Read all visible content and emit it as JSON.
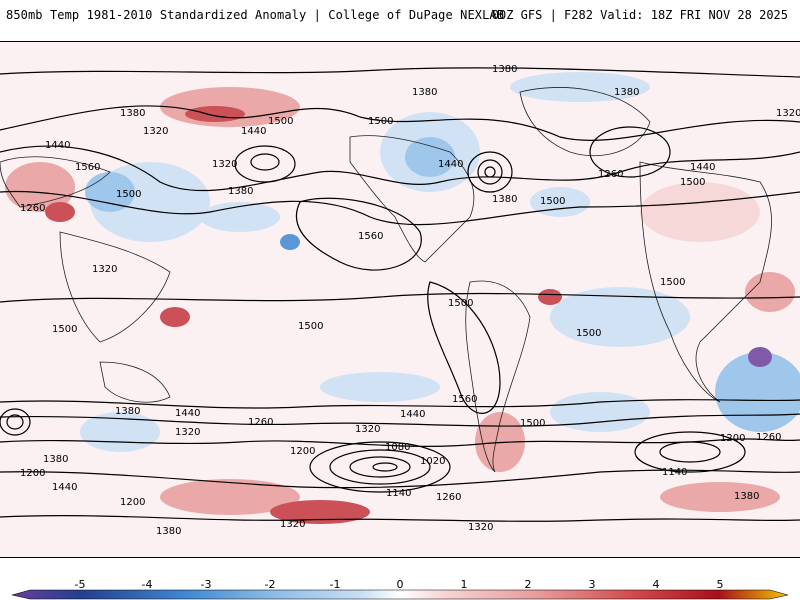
{
  "header": {
    "title": "850mb Temp 1981-2010 Standardized Anomaly | College of DuPage NEXLAB",
    "run_info": "00Z GFS | F282 Valid: 18Z FRI NOV 28 2025"
  },
  "colorbar": {
    "ticks": [
      "-5",
      "-4",
      "-3",
      "-2",
      "-1",
      "0",
      "1",
      "2",
      "3",
      "4",
      "5"
    ],
    "colors": [
      "#6a3d9a",
      "#24408e",
      "#3f86d0",
      "#8fbde8",
      "#c9def3",
      "#ffffff",
      "#f6d2d2",
      "#e79a9a",
      "#d24b4b",
      "#a8101c",
      "#f5c400"
    ]
  },
  "contour_labels": [
    {
      "text": "1380",
      "label": "north-pole-1380"
    },
    {
      "text": "1380",
      "label": "alaska-1380"
    },
    {
      "text": "1380",
      "label": "greenland-1380"
    },
    {
      "text": "1380",
      "label": "siberia-1380"
    },
    {
      "text": "1320",
      "label": "eurasia-1320"
    },
    {
      "text": "1440",
      "label": "pacific-1440"
    },
    {
      "text": "1500",
      "label": "pacific-1500"
    },
    {
      "text": "1320",
      "label": "pacific-1320"
    },
    {
      "text": "1380",
      "label": "pacific-low-1380"
    },
    {
      "text": "1440",
      "label": "nw-1440"
    },
    {
      "text": "1560",
      "label": "asia-1560"
    },
    {
      "text": "1500",
      "label": "asia-1500"
    },
    {
      "text": "1500",
      "label": "n-america-1500"
    },
    {
      "text": "1440",
      "label": "n-america-1440"
    },
    {
      "text": "1380",
      "label": "e-us-1380"
    },
    {
      "text": "1500",
      "label": "atlantic-1500"
    },
    {
      "text": "1560",
      "label": "atlantic-1560"
    },
    {
      "text": "1500",
      "label": "africa-1500"
    },
    {
      "text": "1500",
      "label": "indian-ocean-1500"
    },
    {
      "text": "1440",
      "label": "s-pacific-1440"
    },
    {
      "text": "1380",
      "label": "s-pacific-1380"
    },
    {
      "text": "1320",
      "label": "s-pacific-1320"
    },
    {
      "text": "1260",
      "label": "s-pacific-1260"
    },
    {
      "text": "1200",
      "label": "s-pacific-1200"
    },
    {
      "text": "1080",
      "label": "s-pacific-1080"
    },
    {
      "text": "1020",
      "label": "s-pacific-1020"
    },
    {
      "text": "1140",
      "label": "s-pacific-1140"
    },
    {
      "text": "1260",
      "label": "drake-1260"
    },
    {
      "text": "1320",
      "label": "antarctic-1320"
    },
    {
      "text": "1380",
      "label": "antarctic-1380"
    },
    {
      "text": "1440",
      "label": "s-atlantic-1440"
    },
    {
      "text": "1320",
      "label": "s-atlantic-1320"
    },
    {
      "text": "1200",
      "label": "s-indian-1200"
    },
    {
      "text": "1260",
      "label": "s-indian-1260"
    },
    {
      "text": "1140",
      "label": "s-indian-1140"
    },
    {
      "text": "1560",
      "label": "s-america-1560"
    },
    {
      "text": "1500",
      "label": "s-america-1500"
    },
    {
      "text": "1500",
      "label": "w-pacific-1500"
    },
    {
      "text": "1500",
      "label": "far-west-1500"
    },
    {
      "text": "1320",
      "label": "far-east-1320"
    },
    {
      "text": "1260",
      "label": "far-east-1260"
    },
    {
      "text": "1440",
      "label": "far-east-1440"
    },
    {
      "text": "1500",
      "label": "eurasia-1500"
    },
    {
      "text": "1500",
      "label": "se-asia-1500"
    },
    {
      "text": "1320",
      "label": "sw-1320"
    },
    {
      "text": "1260",
      "label": "sw-1260"
    },
    {
      "text": "1200",
      "label": "sw-1200"
    },
    {
      "text": "1380",
      "label": "sw-1380"
    },
    {
      "text": "1440",
      "label": "sw-1440"
    },
    {
      "text": "1200",
      "label": "s-indian2-1200"
    },
    {
      "text": "1380",
      "label": "antarctic2-1380"
    },
    {
      "text": "1320",
      "label": "antarctic2-1320"
    }
  ]
}
